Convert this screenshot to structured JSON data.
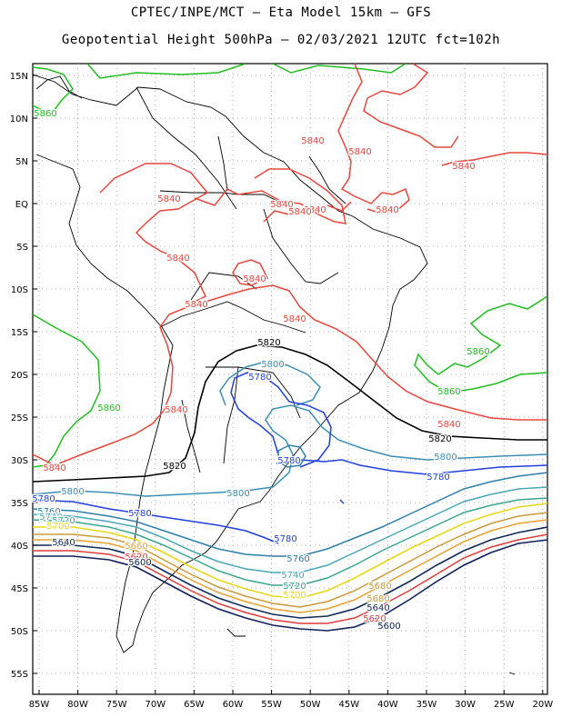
{
  "header": {
    "line1": "CPTEC/INPE/MCT –  Eta Model 15km – GFS",
    "line2": "Geopotential Height 500hPa – 02/03/2021 12UTC fct=102h"
  },
  "map": {
    "lon_ticks": [
      "85W",
      "80W",
      "75W",
      "70W",
      "65W",
      "60W",
      "55W",
      "50W",
      "45W",
      "40W",
      "35W",
      "30W",
      "25W",
      "20W"
    ],
    "lat_ticks": [
      "15N",
      "10N",
      "5N",
      "EQ",
      "5S",
      "10S",
      "15S",
      "20S",
      "25S",
      "30S",
      "35S",
      "40S",
      "45S",
      "50S",
      "55S"
    ],
    "contour_labels": [
      {
        "text": "5860",
        "color": "#1fbf1f"
      },
      {
        "text": "5860",
        "color": "#1fbf1f"
      },
      {
        "text": "5860",
        "color": "#1fbf1f"
      },
      {
        "text": "5860",
        "color": "#1fbf1f"
      },
      {
        "text": "5840",
        "color": "#e8463c"
      },
      {
        "text": "5840",
        "color": "#e8463c"
      },
      {
        "text": "5840",
        "color": "#e8463c"
      },
      {
        "text": "5840",
        "color": "#e8463c"
      },
      {
        "text": "5840",
        "color": "#e8463c"
      },
      {
        "text": "5840",
        "color": "#e8463c"
      },
      {
        "text": "5840",
        "color": "#e8463c"
      },
      {
        "text": "5840",
        "color": "#e8463c"
      },
      {
        "text": "5840",
        "color": "#e8463c"
      },
      {
        "text": "5840",
        "color": "#e8463c"
      },
      {
        "text": "5840",
        "color": "#e8463c"
      },
      {
        "text": "5840",
        "color": "#e8463c"
      },
      {
        "text": "5840",
        "color": "#e8463c"
      },
      {
        "text": "5840",
        "color": "#e8463c"
      },
      {
        "text": "5840",
        "color": "#e8463c"
      },
      {
        "text": "5820",
        "color": "#000000"
      },
      {
        "text": "5820",
        "color": "#000000"
      },
      {
        "text": "5820",
        "color": "#000000"
      },
      {
        "text": "5800",
        "color": "#3a8fb7"
      },
      {
        "text": "5800",
        "color": "#3a8fb7"
      },
      {
        "text": "5800",
        "color": "#3a8fb7"
      },
      {
        "text": "5800",
        "color": "#3a8fb7"
      },
      {
        "text": "5780",
        "color": "#1f3fdf"
      },
      {
        "text": "5780",
        "color": "#1f3fdf"
      },
      {
        "text": "5780",
        "color": "#1f3fdf"
      },
      {
        "text": "5780",
        "color": "#1f3fdf"
      },
      {
        "text": "5780",
        "color": "#1f3fdf"
      },
      {
        "text": "5780",
        "color": "#1f3fdf"
      },
      {
        "text": "5760",
        "color": "#2e7faa"
      },
      {
        "text": "5760",
        "color": "#2e7faa"
      },
      {
        "text": "5740",
        "color": "#46a8b8"
      },
      {
        "text": "5740",
        "color": "#46a8b8"
      },
      {
        "text": "5720",
        "color": "#3aa58f"
      },
      {
        "text": "5720",
        "color": "#3aa58f"
      },
      {
        "text": "5700",
        "color": "#e8d81a"
      },
      {
        "text": "5700",
        "color": "#e8d81a"
      },
      {
        "text": "5680",
        "color": "#c89a3a"
      },
      {
        "text": "5680",
        "color": "#c89a3a"
      },
      {
        "text": "5660",
        "color": "#e8a030"
      },
      {
        "text": "5640",
        "color": "#102a5a"
      },
      {
        "text": "5640",
        "color": "#102a5a"
      },
      {
        "text": "5620",
        "color": "#e03c3c"
      },
      {
        "text": "5620",
        "color": "#e03c3c"
      },
      {
        "text": "5600",
        "color": "#10205a"
      },
      {
        "text": "5600",
        "color": "#10205a"
      }
    ]
  }
}
